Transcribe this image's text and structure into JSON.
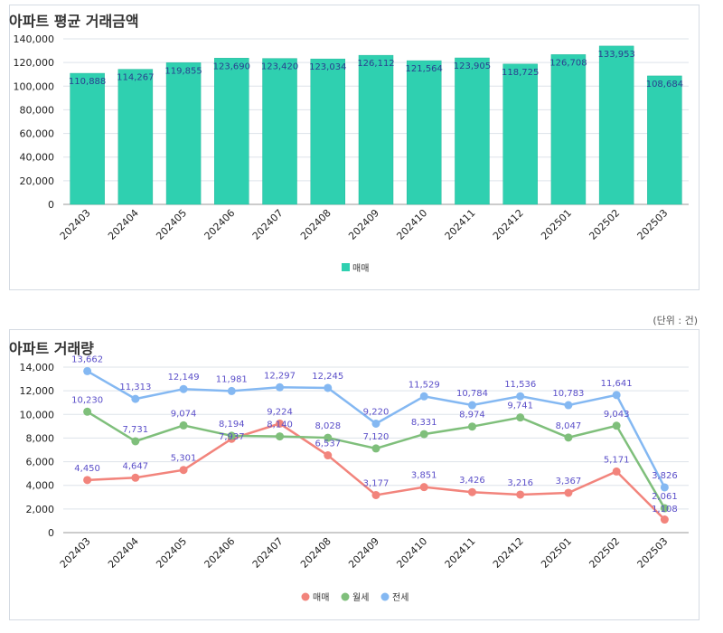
{
  "unit_label": "(단위 : 건)",
  "chart_data": [
    {
      "type": "bar",
      "title": "아파트 평균 거래금액",
      "categories": [
        "202403",
        "202404",
        "202405",
        "202406",
        "202407",
        "202408",
        "202409",
        "202410",
        "202411",
        "202412",
        "202501",
        "202502",
        "202503"
      ],
      "series": [
        {
          "name": "매매",
          "values": [
            110888,
            114267,
            119855,
            123690,
            123420,
            123034,
            126112,
            121564,
            123905,
            118725,
            126708,
            133953,
            108684
          ],
          "color": "#2fd0b0"
        }
      ],
      "ylim": [
        0,
        140000
      ],
      "yticks": [
        0,
        20000,
        40000,
        60000,
        80000,
        100000,
        120000,
        140000
      ],
      "legend": "bottom",
      "grid": true
    },
    {
      "type": "line",
      "title": "아파트 거래량",
      "categories": [
        "202403",
        "202404",
        "202405",
        "202406",
        "202407",
        "202408",
        "202409",
        "202410",
        "202411",
        "202412",
        "202501",
        "202502",
        "202503"
      ],
      "series": [
        {
          "name": "매매",
          "values": [
            4450,
            4647,
            5301,
            7937,
            9224,
            6537,
            3177,
            3851,
            3426,
            3216,
            3367,
            5171,
            1108
          ],
          "color": "#f2847c"
        },
        {
          "name": "월세",
          "values": [
            10230,
            7731,
            9074,
            8194,
            8140,
            8028,
            7120,
            8331,
            8974,
            9741,
            8047,
            9043,
            2061
          ],
          "color": "#7fbf7b"
        },
        {
          "name": "전세",
          "values": [
            13662,
            11313,
            12149,
            11981,
            12297,
            12245,
            9220,
            11529,
            10784,
            11536,
            10783,
            11641,
            3826
          ],
          "color": "#84b8f2"
        }
      ],
      "ylim": [
        0,
        14000
      ],
      "yticks": [
        0,
        2000,
        4000,
        6000,
        8000,
        10000,
        12000,
        14000
      ],
      "legend": "bottom",
      "grid": true
    }
  ]
}
